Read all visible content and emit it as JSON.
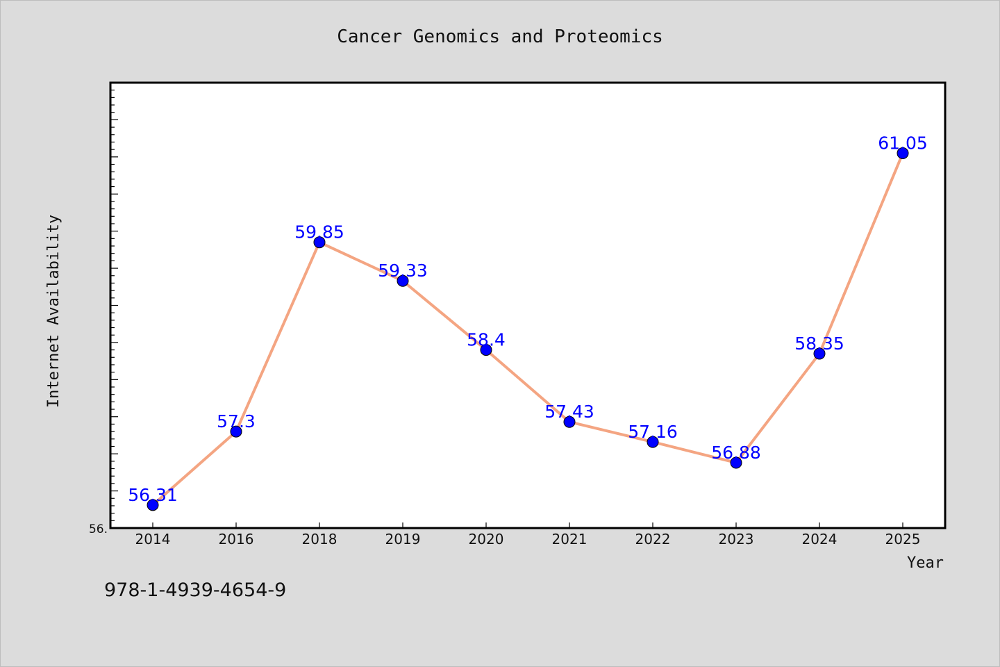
{
  "chart_data": {
    "type": "line",
    "title": "Cancer Genomics and Proteomics",
    "xlabel": "Year",
    "ylabel": "Internet Availability",
    "categories": [
      "2014",
      "2016",
      "2018",
      "2019",
      "2020",
      "2021",
      "2022",
      "2023",
      "2024",
      "2025"
    ],
    "series": [
      {
        "values": [
          56.31,
          57.3,
          59.85,
          59.33,
          58.4,
          57.43,
          57.16,
          56.88,
          58.35,
          61.05
        ]
      }
    ],
    "data_labels": [
      "56.31",
      "57.3",
      "59.85",
      "59.33",
      "58.4",
      "57.43",
      "57.16",
      "56.88",
      "58.35",
      "61.05"
    ],
    "ylim": [
      56.0,
      62.0
    ],
    "y_tick_label": "56.",
    "grid": false,
    "legend": "none",
    "line_color": "#f4a582",
    "marker_color": "#0000ff",
    "label_color": "#0000ff"
  },
  "footer_code": "978-1-4939-4654-9"
}
